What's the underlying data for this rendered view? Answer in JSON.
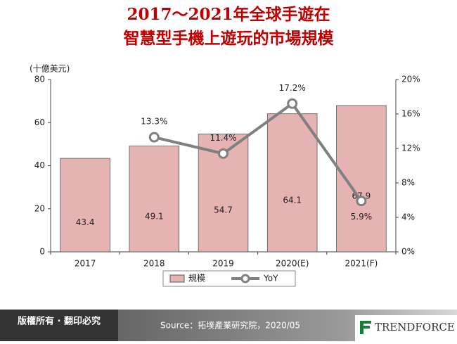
{
  "chart_data": {
    "type": "bar-line",
    "title": [
      "2017～2021年全球手遊在",
      "智慧型手機上遊玩的市場規模"
    ],
    "y_label": "(十億美元)",
    "categories": [
      "2017",
      "2018",
      "2019",
      "2020(E)",
      "2021(F)"
    ],
    "series": [
      {
        "name": "規模",
        "type": "bar",
        "color": "#e6b3b3",
        "values": [
          43.4,
          49.1,
          54.7,
          64.1,
          67.9
        ]
      },
      {
        "name": "YoY",
        "type": "line",
        "axis": "y2",
        "color": "#808080",
        "values": [
          null,
          13.3,
          11.4,
          17.2,
          5.9
        ],
        "value_labels": [
          null,
          "13.3%",
          "11.4%",
          "17.2%",
          "5.9%"
        ]
      }
    ],
    "ylim": [
      0,
      80
    ],
    "yticks": [
      0,
      20,
      40,
      60,
      80
    ],
    "y2lim": [
      0,
      20
    ],
    "y2ticks": [
      {
        "value": 0,
        "label": "0%"
      },
      {
        "value": 4,
        "label": "4%"
      },
      {
        "value": 8,
        "label": "8%"
      },
      {
        "value": 12,
        "label": "12%"
      },
      {
        "value": 16,
        "label": "16%"
      },
      {
        "value": 20,
        "label": "20%"
      }
    ],
    "grid": false,
    "legend": "bottom"
  },
  "footer": {
    "copyright": "版權所有 · 翻印必究",
    "source": "Source：拓墣產業研究院，2020/05",
    "logo": "TRENDFORCE"
  }
}
